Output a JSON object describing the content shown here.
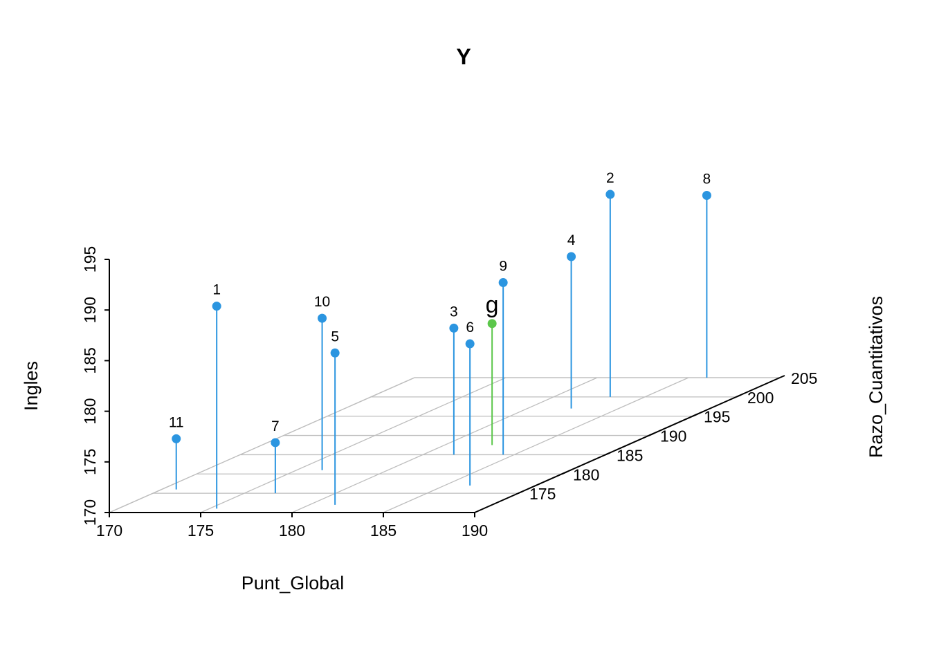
{
  "chart_data": {
    "type": "scatter3d",
    "title": "Y",
    "xlabel": "Punt_Global",
    "ylabel": "Razo_Cuantitativos",
    "zlabel": "Ingles",
    "x_ticks": [
      "170",
      "175",
      "180",
      "185",
      "190"
    ],
    "y_ticks": [
      "175",
      "180",
      "185",
      "190",
      "195",
      "200",
      "205"
    ],
    "z_ticks": [
      "170",
      "175",
      "180",
      "185",
      "190",
      "195"
    ],
    "xlim": [
      170,
      190
    ],
    "ylim": [
      170,
      205
    ],
    "zlim": [
      170,
      195
    ],
    "grid": true,
    "colors": {
      "points": "#2B95E0",
      "highlight": "#5CC74B",
      "grid": "#BEBEBE",
      "axis": "#000000"
    },
    "points": [
      {
        "label": "1",
        "x": 175.4,
        "y": 171.0,
        "z": 190.0
      },
      {
        "label": "2",
        "x": 183.1,
        "y": 200.0,
        "z": 190.0
      },
      {
        "label": "3",
        "x": 181.7,
        "y": 185.0,
        "z": 182.5
      },
      {
        "label": "4",
        "x": 182.4,
        "y": 197.0,
        "z": 185.0
      },
      {
        "label": "5",
        "x": 181.4,
        "y": 172.0,
        "z": 185.0
      },
      {
        "label": "6",
        "x": 186.4,
        "y": 177.0,
        "z": 184.0
      },
      {
        "label": "7",
        "x": 176.7,
        "y": 175.0,
        "z": 175.0
      },
      {
        "label": "8",
        "x": 186.0,
        "y": 205.0,
        "z": 188.0
      },
      {
        "label": "9",
        "x": 184.4,
        "y": 185.0,
        "z": 187.0
      },
      {
        "label": "10",
        "x": 176.4,
        "y": 181.0,
        "z": 185.0
      },
      {
        "label": "11",
        "x": 170.8,
        "y": 176.0,
        "z": 175.0
      },
      {
        "label": "g",
        "x": 182.6,
        "y": 187.5,
        "z": 182.0,
        "highlight": true
      }
    ]
  }
}
